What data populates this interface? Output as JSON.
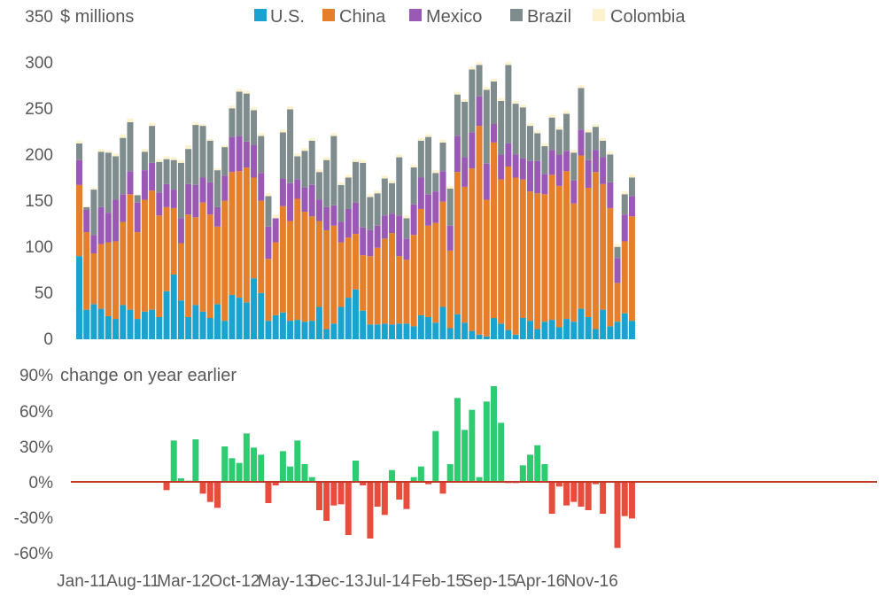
{
  "chart_data": {
    "type": "bar",
    "stacked_panel": {
      "unit_label": "$ millions",
      "y_ticks": [
        0,
        50,
        100,
        150,
        200,
        250,
        300,
        350
      ],
      "ylim": [
        0,
        350
      ],
      "series": [
        {
          "name": "U.S.",
          "color": "#1aa3cf",
          "values": [
            90,
            32,
            38,
            33,
            25,
            22,
            37,
            32,
            22,
            30,
            32,
            24,
            52,
            70,
            42,
            24,
            37,
            30,
            23,
            38,
            20,
            48,
            45,
            40,
            66,
            50,
            20,
            26,
            29,
            20,
            21,
            19,
            20,
            35,
            11,
            17,
            35,
            45,
            54,
            31,
            16,
            16,
            17,
            16,
            17,
            17,
            14,
            26,
            24,
            18,
            35,
            12,
            27,
            18,
            9,
            5,
            3,
            23,
            17,
            10,
            5,
            23,
            20,
            11,
            19,
            21,
            13,
            22,
            19,
            33,
            24,
            11,
            32,
            14,
            19,
            28,
            20
          ]
        },
        {
          "name": "China",
          "color": "#e57f2b",
          "values": [
            77,
            84,
            55,
            70,
            80,
            84,
            90,
            125,
            94,
            121,
            129,
            110,
            91,
            72,
            62,
            111,
            95,
            118,
            112,
            84,
            130,
            133,
            137,
            146,
            109,
            100,
            67,
            79,
            115,
            108,
            131,
            119,
            113,
            93,
            107,
            106,
            70,
            65,
            60,
            60,
            74,
            83,
            92,
            99,
            73,
            69,
            99,
            115,
            99,
            108,
            114,
            84,
            154,
            147,
            176,
            226,
            148,
            190,
            156,
            177,
            170,
            150,
            140,
            147,
            138,
            157,
            153,
            160,
            128,
            166,
            140,
            170,
            136,
            128,
            42,
            78,
            113
          ]
        },
        {
          "name": "Mexico",
          "color": "#9b59b6",
          "values": [
            27,
            24,
            20,
            40,
            32,
            45,
            30,
            25,
            32,
            32,
            30,
            25,
            25,
            20,
            27,
            33,
            35,
            27,
            35,
            21,
            27,
            38,
            38,
            28,
            35,
            30,
            35,
            26,
            30,
            41,
            21,
            26,
            34,
            23,
            25,
            22,
            22,
            31,
            34,
            30,
            28,
            24,
            25,
            21,
            44,
            23,
            33,
            34,
            34,
            34,
            33,
            27,
            39,
            32,
            39,
            32,
            39,
            20,
            27,
            25,
            25,
            23,
            33,
            35,
            22,
            27,
            34,
            22,
            25,
            28,
            30,
            24,
            29,
            28,
            27,
            29,
            22
          ]
        },
        {
          "name": "Brazil",
          "color": "#7f8c8d",
          "values": [
            18,
            3,
            49,
            60,
            65,
            47,
            61,
            53,
            8,
            20,
            40,
            33,
            27,
            32,
            60,
            38,
            65,
            56,
            45,
            40,
            31,
            31,
            48,
            52,
            38,
            40,
            33,
            0,
            50,
            80,
            25,
            40,
            48,
            30,
            51,
            75,
            40,
            34,
            44,
            70,
            36,
            35,
            40,
            33,
            63,
            22,
            40,
            40,
            62,
            20,
            31,
            40,
            45,
            60,
            68,
            34,
            80,
            46,
            58,
            85,
            55,
            55,
            38,
            30,
            30,
            35,
            27,
            40,
            30,
            45,
            30,
            25,
            18,
            30,
            12,
            22,
            20
          ]
        },
        {
          "name": "Colombia",
          "color": "#fcf2cd",
          "values": [
            3,
            1,
            2,
            3,
            2,
            3,
            4,
            4,
            1,
            3,
            3,
            3,
            3,
            3,
            3,
            4,
            3,
            2,
            2,
            2,
            2,
            3,
            3,
            3,
            3,
            3,
            3,
            4,
            3,
            3,
            3,
            3,
            3,
            3,
            3,
            3,
            3,
            3,
            3,
            3,
            3,
            3,
            3,
            3,
            3,
            3,
            3,
            3,
            3,
            3,
            3,
            3,
            3,
            3,
            3,
            3,
            3,
            3,
            3,
            3,
            3,
            3,
            3,
            3,
            3,
            3,
            3,
            3,
            3,
            3,
            3,
            3,
            3,
            3,
            3,
            3,
            3
          ]
        }
      ]
    },
    "change_panel": {
      "unit_label": "change on year earlier",
      "y_ticks": [
        "90%",
        "60%",
        "30%",
        "0%",
        "-30%",
        "-60%"
      ],
      "ylim": [
        -60,
        90
      ],
      "positive_color": "#2ecc71",
      "negative_color": "#e74c3c",
      "zero_line_color": "#c0392b",
      "values": [
        0,
        0,
        0,
        0,
        0,
        0,
        0,
        0,
        0,
        0,
        0,
        0,
        -7,
        35,
        3,
        1,
        36,
        -10,
        -17,
        -22,
        30,
        20,
        16,
        41,
        29,
        23,
        -18,
        -3,
        26,
        13,
        35,
        15,
        4,
        -24,
        -33,
        -20,
        -19,
        -45,
        18,
        -3,
        -48,
        -21,
        -28,
        10,
        -15,
        -23,
        4,
        13,
        -2,
        43,
        -10,
        15,
        71,
        44,
        61,
        4,
        68,
        81,
        50,
        -1,
        -1,
        14,
        23,
        31,
        15,
        -27,
        -4,
        -20,
        -17,
        -21,
        -24,
        -2,
        -27,
        0,
        -56,
        -29,
        -31
      ]
    },
    "x_labels": [
      "Jan-11",
      "Aug-11",
      "Mar-12",
      "Oct-12",
      "May-13",
      "Dec-13",
      "Jul-14",
      "Feb-15",
      "Sep-15",
      "Apr-16",
      "Nov-16"
    ],
    "months": 77
  }
}
